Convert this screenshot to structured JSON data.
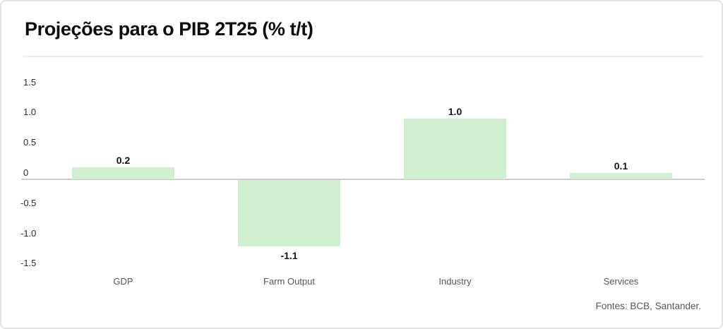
{
  "chart_data": {
    "type": "bar",
    "title": "Projeções para o PIB 2T25 (% t/t)",
    "categories": [
      "GDP",
      "Farm Output",
      "Industry",
      "Services"
    ],
    "values": [
      0.2,
      -1.1,
      1.0,
      0.1
    ],
    "value_labels": [
      "0.2",
      "-1.1",
      "1.0",
      "0.1"
    ],
    "yticks": [
      {
        "value": 1.5,
        "label": "1.5"
      },
      {
        "value": 1.0,
        "label": "1.0"
      },
      {
        "value": 0.5,
        "label": "0.5"
      },
      {
        "value": 0,
        "label": "0"
      },
      {
        "value": -0.5,
        "label": "-0.5"
      },
      {
        "value": -1.0,
        "label": "-1.0"
      },
      {
        "value": -1.5,
        "label": "-1.5"
      }
    ],
    "ylim": [
      -1.5,
      1.5
    ],
    "grid": "off",
    "legend": "none",
    "bar_color": "#d0eed0",
    "source": "Fontes: BCB, Santander.",
    "xlabel": "",
    "ylabel": ""
  }
}
